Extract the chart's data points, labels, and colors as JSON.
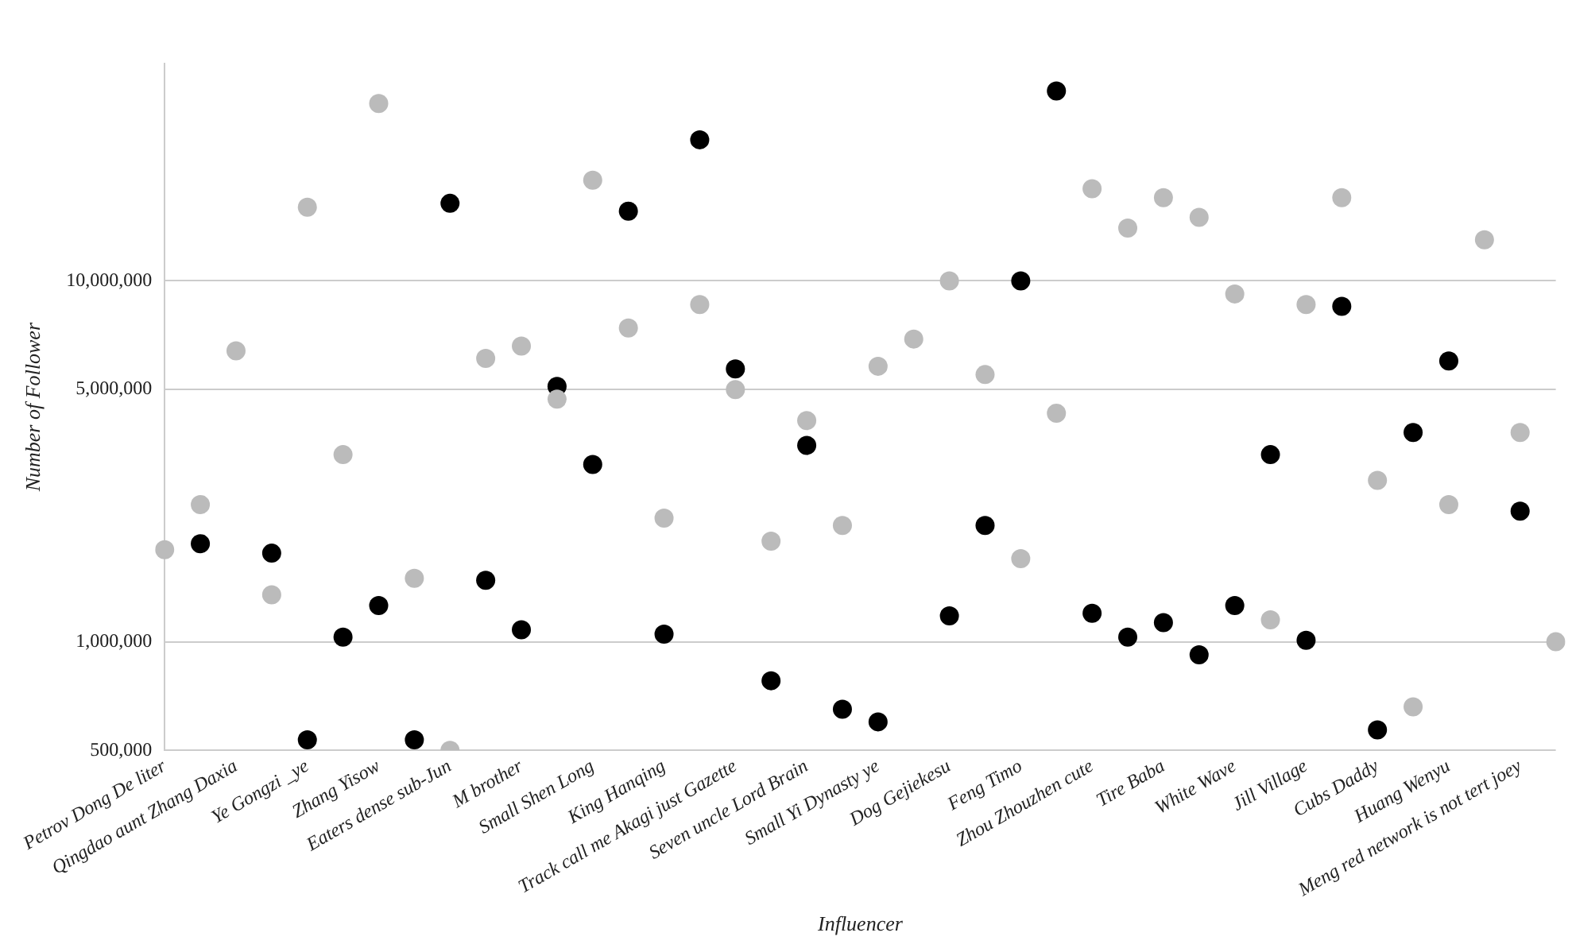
{
  "chart_data": {
    "type": "scatter",
    "xlabel": "Influencer",
    "ylabel": "Number of Follower",
    "categories": [
      "Petrov Dong De liter",
      null,
      "Qingdao aunt Zhang Daxia",
      null,
      "Ye Gongzi _ye",
      null,
      "Zhang Yisow",
      null,
      "Eaters dense sub-Jun",
      null,
      "M brother",
      null,
      "Small Shen Long",
      null,
      "King Hanqing",
      null,
      "Track call me Akagi just Gazette",
      null,
      "Seven uncle Lord Brain",
      null,
      "Small Yi Dynasty ye",
      null,
      "Dog Gejiekesu",
      null,
      "Feng Timo",
      null,
      "Zhou Zhouzhen cute",
      null,
      "Tire Baba",
      null,
      "White Wave",
      null,
      "Jill Village",
      null,
      "Cubs Daddy",
      null,
      "Huang Wenyu",
      null,
      "Meng red network is not tert joey",
      null
    ],
    "series": [
      {
        "color": "#bbbbbb",
        "values": [
          1800000,
          2400000,
          6400000,
          1350000,
          16000000,
          3300000,
          31000000,
          1500000,
          500000,
          6100000,
          6600000,
          4700000,
          19000000,
          7400000,
          2200000,
          8600000,
          5000000,
          1900000,
          4100000,
          2100000,
          5800000,
          6900000,
          10000000,
          5500000,
          1700000,
          4300000,
          18000000,
          14000000,
          17000000,
          15000000,
          9200000,
          1150000,
          8600000,
          17000000,
          2800000,
          660000,
          2400000,
          13000000,
          3800000,
          1000000
        ]
      },
      {
        "color": "#000000",
        "values": [
          null,
          1870000,
          null,
          1760000,
          535000,
          1030000,
          1260000,
          535000,
          16400000,
          1480000,
          1080000,
          5100000,
          3100000,
          15600000,
          1050000,
          24600000,
          5700000,
          780000,
          3500000,
          650000,
          600000,
          null,
          1180000,
          2100000,
          10000000,
          33600000,
          1200000,
          1030000,
          1130000,
          920000,
          1260000,
          3300000,
          1010000,
          8500000,
          570000,
          3800000,
          6000000,
          null,
          2300000,
          null
        ]
      }
    ],
    "log": "y",
    "ylim": [
      500000,
      40000000
    ],
    "yticks": [
      {
        "value": 500000,
        "label": "500,000"
      },
      {
        "value": 1000000,
        "label": "1,000,000"
      },
      {
        "value": 5000000,
        "label": "5,000,000"
      },
      {
        "value": 10000000,
        "label": "10,000,000"
      }
    ],
    "grid": "y",
    "marker": "circle"
  }
}
